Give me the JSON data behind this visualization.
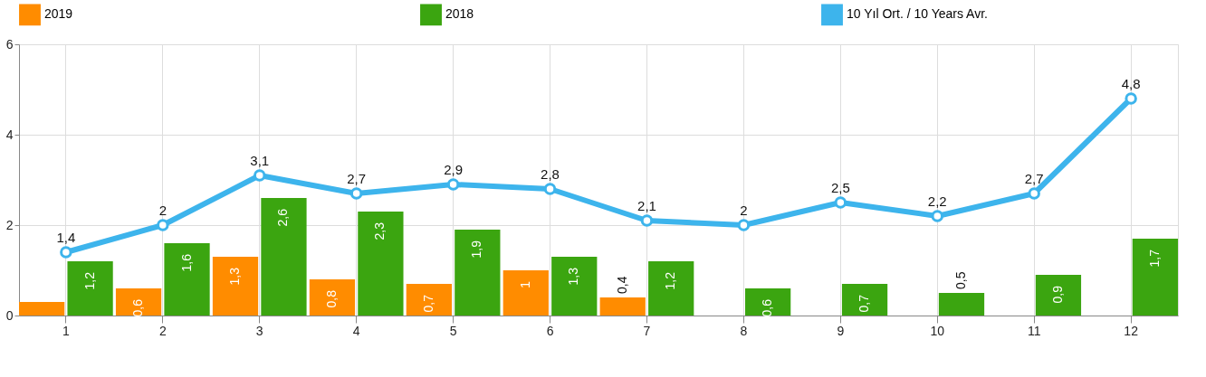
{
  "chart_data": {
    "type": "bar",
    "categories": [
      "1",
      "2",
      "3",
      "4",
      "5",
      "6",
      "7",
      "8",
      "9",
      "10",
      "11",
      "12"
    ],
    "series": [
      {
        "name": "2019",
        "color": "#ff8c00",
        "values": [
          0.3,
          0.6,
          1.3,
          0.8,
          0.7,
          1,
          0.4,
          null,
          null,
          null,
          null,
          null
        ],
        "value_labels": [
          null,
          "0,6",
          "1,3",
          "0,8",
          "0,7",
          "1",
          "0,4",
          null,
          null,
          null,
          null,
          null
        ]
      },
      {
        "name": "2018",
        "color": "#3ba510",
        "values": [
          1.2,
          1.6,
          2.6,
          2.3,
          1.9,
          1.3,
          1.2,
          0.6,
          0.7,
          0.5,
          0.9,
          1.7
        ],
        "value_labels": [
          "1,2",
          "1,6",
          "2,6",
          "2,3",
          "1,9",
          "1,3",
          "1,2",
          "0,6",
          "0,7",
          "0,5",
          "0,9",
          "1,7"
        ]
      },
      {
        "name": "10 Yıl Ort. / 10 Years Avr.",
        "type": "line",
        "color": "#3db4ec",
        "values": [
          1.4,
          2,
          3.1,
          2.7,
          2.9,
          2.8,
          2.1,
          2,
          2.5,
          2.2,
          2.7,
          4.8
        ],
        "value_labels": [
          "1,4",
          "2",
          "3,1",
          "2,7",
          "2,9",
          "2,8",
          "2,1",
          "2",
          "2,5",
          "2,2",
          "2,7",
          "4,8"
        ]
      }
    ],
    "ylim": [
      0,
      6
    ],
    "yticks": [
      0,
      2,
      4,
      6
    ],
    "grid": true,
    "legend": "top",
    "marker": "circle"
  }
}
